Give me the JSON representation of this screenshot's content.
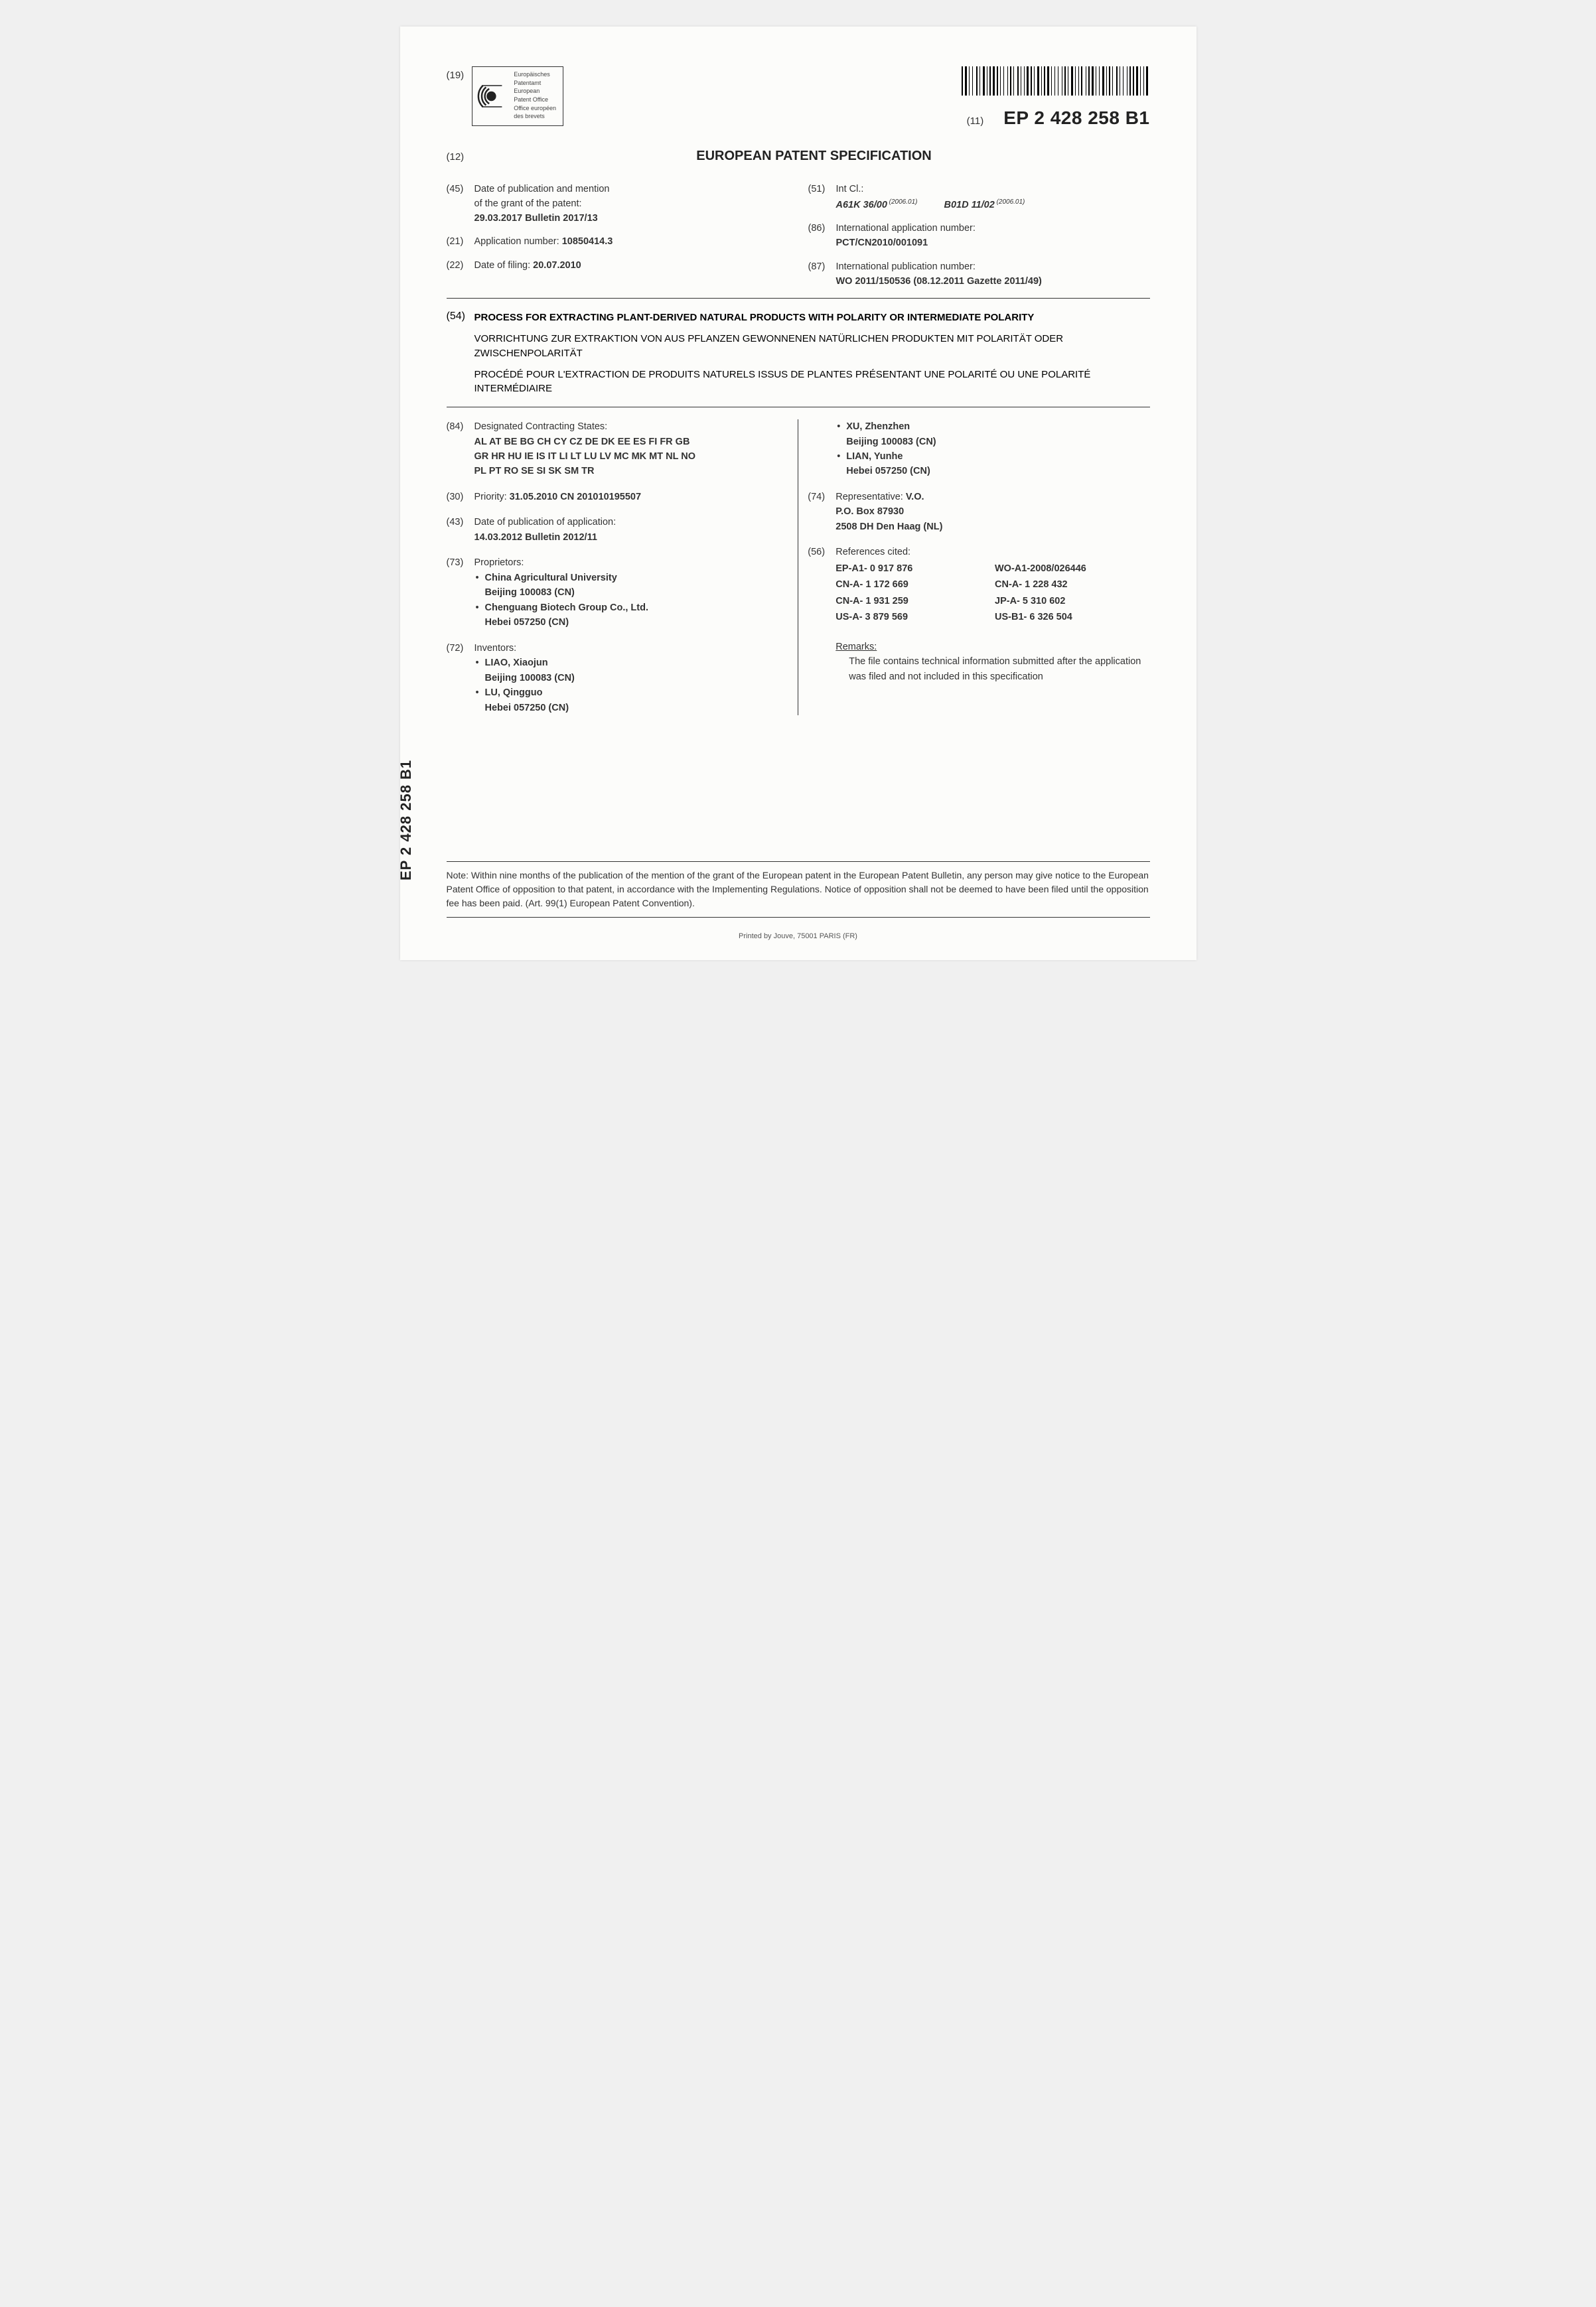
{
  "header": {
    "code19": "(19)",
    "logo_lines": [
      "Europäisches",
      "Patentamt",
      "European",
      "Patent Office",
      "Office européen",
      "des brevets"
    ],
    "code11": "(11)",
    "pub_number": "EP 2 428 258 B1"
  },
  "doc_title_row": {
    "code12": "(12)",
    "title": "EUROPEAN PATENT SPECIFICATION"
  },
  "top_left": [
    {
      "code": "(45)",
      "lines": [
        "Date of publication and mention",
        "of the grant of the patent:"
      ],
      "bold": "29.03.2017  Bulletin 2017/13"
    },
    {
      "code": "(21)",
      "lines": [
        "Application number: "
      ],
      "inline_bold": "10850414.3"
    },
    {
      "code": "(22)",
      "lines": [
        "Date of filing: "
      ],
      "inline_bold": "20.07.2010"
    }
  ],
  "top_right": [
    {
      "code": "(51)",
      "label": "Int Cl.:",
      "ipc": [
        {
          "main": "A61K 36/00",
          "year": "(2006.01)"
        },
        {
          "main": "B01D 11/02",
          "year": "(2006.01)"
        }
      ]
    },
    {
      "code": "(86)",
      "label": "International application number:",
      "bold": "PCT/CN2010/001091"
    },
    {
      "code": "(87)",
      "label": "International publication number:",
      "bold": "WO 2011/150536 (08.12.2011 Gazette 2011/49)"
    }
  ],
  "title54": {
    "code": "(54)",
    "en": "PROCESS FOR EXTRACTING PLANT-DERIVED NATURAL PRODUCTS WITH POLARITY OR INTERMEDIATE POLARITY",
    "de": "VORRICHTUNG ZUR EXTRAKTION VON AUS PFLANZEN GEWONNENEN NATÜRLICHEN PRODUKTEN MIT POLARITÄT ODER ZWISCHENPOLARITÄT",
    "fr": "PROCÉDÉ POUR L'EXTRACTION DE PRODUITS NATURELS ISSUS DE PLANTES PRÉSENTANT UNE POLARITÉ OU UNE POLARITÉ INTERMÉDIAIRE"
  },
  "lower_left": [
    {
      "code": "(84)",
      "label": "Designated Contracting States:",
      "bold_lines": [
        "AL AT BE BG CH CY CZ DE DK EE ES FI FR GB",
        "GR HR HU IE IS IT LI LT LU LV MC MK MT NL NO",
        "PL PT RO SE SI SK SM TR"
      ]
    },
    {
      "code": "(30)",
      "inline": "Priority: ",
      "inline_bold": "31.05.2010  CN 201010195507"
    },
    {
      "code": "(43)",
      "label": "Date of publication of application:",
      "bold_lines": [
        "14.03.2012  Bulletin 2012/11"
      ]
    },
    {
      "code": "(73)",
      "label": "Proprietors:",
      "bullets": [
        [
          "China Agricultural University",
          "Beijing 100083 (CN)"
        ],
        [
          "Chenguang Biotech Group Co., Ltd.",
          "Hebei 057250 (CN)"
        ]
      ]
    },
    {
      "code": "(72)",
      "label": "Inventors:",
      "bullets": [
        [
          "LIAO, Xiaojun",
          "Beijing 100083 (CN)"
        ],
        [
          "LU, Qingguo",
          "Hebei 057250 (CN)"
        ]
      ]
    }
  ],
  "lower_right_top_bullets": [
    [
      "XU, Zhenzhen",
      "Beijing 100083 (CN)"
    ],
    [
      "LIAN, Yunhe",
      "Hebei 057250 (CN)"
    ]
  ],
  "lower_right": [
    {
      "code": "(74)",
      "inline": "Representative: ",
      "inline_bold": "V.O.",
      "bold_lines": [
        "P.O. Box 87930",
        "2508 DH Den Haag (NL)"
      ]
    },
    {
      "code": "(56)",
      "label": "References cited:",
      "refs": [
        "EP-A1- 0 917 876",
        "WO-A1-2008/026446",
        "CN-A- 1 172 669",
        "CN-A- 1 228 432",
        "CN-A- 1 931 259",
        "JP-A- 5 310 602",
        "US-A- 3 879 569",
        "US-B1- 6 326 504"
      ]
    }
  ],
  "remarks": {
    "label": "Remarks:",
    "body": "The file contains technical information submitted after the application was filed and not included in this specification"
  },
  "spine": "EP 2 428 258 B1",
  "note": "Note: Within nine months of the publication of the mention of the grant of the European patent in the European Patent Bulletin, any person may give notice to the European Patent Office of opposition to that patent, in accordance with the Implementing Regulations. Notice of opposition shall not be deemed to have been filed until the opposition fee has been paid. (Art. 99(1) European Patent Convention).",
  "printer": "Printed by Jouve, 75001 PARIS (FR)",
  "barcode_widths": [
    2,
    1,
    3,
    1,
    1,
    2,
    1,
    3,
    2,
    1,
    1,
    2,
    3,
    1,
    1,
    1,
    2,
    1,
    3,
    1,
    2,
    1,
    1,
    2,
    1,
    3,
    1,
    1,
    2,
    1,
    1,
    3,
    2,
    1,
    1,
    2,
    1,
    1,
    3,
    1,
    2,
    1,
    1,
    2,
    3,
    1,
    1,
    1,
    2,
    1,
    3,
    1,
    1,
    2,
    1,
    2,
    1,
    3,
    1,
    1,
    2,
    1,
    1,
    2,
    3,
    1,
    1,
    2,
    1,
    1,
    2,
    3,
    1,
    1,
    2,
    1,
    3,
    1,
    1,
    2,
    1,
    2,
    3,
    1,
    1,
    1,
    2,
    1,
    1,
    3,
    2,
    1,
    1,
    2,
    1,
    3,
    1,
    1,
    2,
    1,
    2,
    1,
    3,
    1,
    1,
    2,
    1,
    1,
    3,
    2
  ]
}
